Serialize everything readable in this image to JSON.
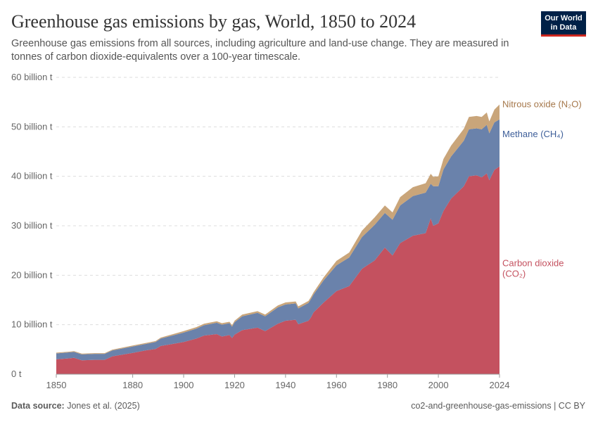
{
  "header": {
    "title": "Greenhouse gas emissions by gas, World, 1850 to 2024",
    "subtitle": "Greenhouse gas emissions from all sources, including agriculture and land-use change. They are measured in tonnes of carbon dioxide-equivalents over a 100-year timescale.",
    "logo": "Our World in Data"
  },
  "footer": {
    "source_label": "Data source:",
    "source": "Jones et al. (2025)",
    "right": "co2-and-greenhouse-gas-emissions | CC BY"
  },
  "chart_data": {
    "type": "area",
    "stacked": true,
    "title": "Greenhouse gas emissions by gas, World, 1850 to 2024",
    "xlim": [
      1850,
      2024
    ],
    "ylim": [
      0,
      60
    ],
    "unit": "billion t",
    "x_ticks": [
      "1850",
      "1880",
      "1900",
      "1920",
      "1940",
      "1960",
      "1980",
      "2000",
      "2024"
    ],
    "y_ticks": [
      "0 t",
      "10 billion t",
      "20 billion t",
      "30 billion t",
      "40 billion t",
      "50 billion t",
      "60 billion t"
    ],
    "grid": "horizontal dashed",
    "legend": "right, inline labels",
    "x": [
      1850,
      1855,
      1857,
      1860,
      1865,
      1869,
      1872,
      1880,
      1885,
      1889,
      1891,
      1900,
      1905,
      1908,
      1913,
      1915,
      1918,
      1919,
      1920,
      1923,
      1929,
      1932,
      1937,
      1940,
      1944,
      1945,
      1949,
      1950,
      1951,
      1955,
      1960,
      1965,
      1970,
      1975,
      1979,
      1982,
      1985,
      1990,
      1995,
      1997,
      1998,
      2000,
      2002,
      2005,
      2010,
      2012,
      2015,
      2017,
      2019,
      2020,
      2022,
      2024
    ],
    "series": [
      {
        "name": "Carbon dioxide (CO₂)",
        "label_lines": [
          "Carbon dioxide",
          "(CO₂)"
        ],
        "color": "#c4515f",
        "values": [
          3.0,
          3.2,
          3.3,
          2.8,
          2.9,
          2.9,
          3.6,
          4.3,
          4.8,
          5.1,
          5.7,
          6.5,
          7.2,
          7.8,
          8.1,
          7.6,
          7.9,
          7.3,
          8.0,
          8.9,
          9.4,
          8.7,
          10.2,
          10.8,
          11.0,
          10.1,
          10.8,
          11.5,
          12.5,
          14.5,
          16.8,
          17.8,
          21.3,
          23.0,
          25.6,
          24.0,
          26.5,
          28.0,
          28.5,
          31.5,
          30.0,
          30.5,
          33.0,
          35.5,
          38.0,
          40.0,
          40.2,
          39.8,
          40.6,
          39.2,
          41.3,
          42.0
        ]
      },
      {
        "name": "Methane (CH₄)",
        "label_lines": [
          "Methane (CH₄)"
        ],
        "color": "#6a82ab",
        "label_color": "#3d5e99",
        "values": [
          1.2,
          1.2,
          1.2,
          1.2,
          1.2,
          1.2,
          1.2,
          1.3,
          1.3,
          1.4,
          1.5,
          1.9,
          2.0,
          2.1,
          2.3,
          2.4,
          2.4,
          2.3,
          2.5,
          2.8,
          3.0,
          3.0,
          3.3,
          3.3,
          3.3,
          3.2,
          3.6,
          3.7,
          3.6,
          4.5,
          5.2,
          5.8,
          6.4,
          7.2,
          7.0,
          7.2,
          7.6,
          8.0,
          8.2,
          7.0,
          8.0,
          7.5,
          8.4,
          8.5,
          9.2,
          9.5,
          9.5,
          9.7,
          9.8,
          9.5,
          9.6,
          9.5
        ]
      },
      {
        "name": "Nitrous oxide (N₂O)",
        "label_lines": [
          "Nitrous oxide (N₂O)"
        ],
        "color": "#c9a57a",
        "label_color": "#a5774a",
        "values": [
          0.15,
          0.15,
          0.15,
          0.15,
          0.15,
          0.15,
          0.15,
          0.2,
          0.2,
          0.2,
          0.2,
          0.3,
          0.3,
          0.3,
          0.3,
          0.3,
          0.3,
          0.3,
          0.3,
          0.35,
          0.35,
          0.35,
          0.4,
          0.4,
          0.4,
          0.4,
          0.4,
          0.4,
          0.45,
          0.6,
          0.9,
          1.0,
          1.3,
          1.5,
          1.5,
          1.5,
          1.7,
          1.8,
          1.9,
          2.0,
          1.9,
          2.0,
          2.1,
          2.2,
          2.4,
          2.5,
          2.5,
          2.5,
          2.5,
          2.4,
          2.6,
          3.0
        ]
      }
    ]
  }
}
